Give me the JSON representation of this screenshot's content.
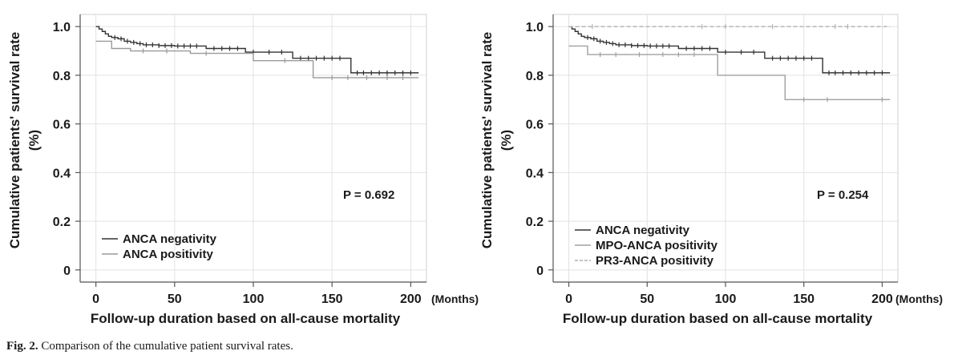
{
  "chart_data": [
    {
      "type": "line",
      "subtype": "kaplan-meier",
      "ylabel": "Cumulative patients' survival rate (%)",
      "xlabel": "Follow-up duration based on all-cause mortality",
      "xunit": "(Months)",
      "xlim": [
        -10,
        210
      ],
      "ylim": [
        -0.05,
        1.05
      ],
      "xticks": [
        0,
        50,
        100,
        150,
        200
      ],
      "yticks": [
        0,
        0.2,
        0.4,
        0.6,
        0.8,
        1.0
      ],
      "ytick_labels": [
        "0",
        "0.2",
        "0.4",
        "0.6",
        "0.8",
        "1.0"
      ],
      "grid": true,
      "pvalue": "P = 0.692",
      "legend_position": "bottom-left",
      "series": [
        {
          "name": "ANCA negativity",
          "color": "#333333",
          "style": "solid",
          "x": [
            0,
            2,
            4,
            6,
            8,
            10,
            14,
            18,
            22,
            26,
            30,
            40,
            50,
            70,
            95,
            125,
            162,
            205
          ],
          "y": [
            1.0,
            0.99,
            0.98,
            0.97,
            0.96,
            0.955,
            0.95,
            0.94,
            0.935,
            0.93,
            0.925,
            0.922,
            0.92,
            0.91,
            0.895,
            0.87,
            0.81,
            0.81
          ],
          "censored_x": [
            12,
            16,
            20,
            24,
            28,
            32,
            36,
            40,
            44,
            48,
            52,
            56,
            60,
            64,
            75,
            80,
            85,
            90,
            100,
            110,
            118,
            130,
            135,
            140,
            145,
            150,
            155,
            166,
            170,
            175,
            180,
            185,
            190,
            195,
            200
          ]
        },
        {
          "name": "ANCA positivity",
          "color": "#9a9a9a",
          "style": "solid",
          "x": [
            0,
            10,
            22,
            60,
            100,
            138,
            205
          ],
          "y": [
            0.94,
            0.91,
            0.9,
            0.89,
            0.86,
            0.79,
            0.79
          ],
          "censored_x": [
            30,
            45,
            70,
            120,
            150,
            160,
            172,
            185,
            195
          ]
        }
      ]
    },
    {
      "type": "line",
      "subtype": "kaplan-meier",
      "ylabel": "Cumulative patients' survival rate (%)",
      "xlabel": "Follow-up duration based on all-cause mortality",
      "xunit": "(Months)",
      "xlim": [
        -10,
        210
      ],
      "ylim": [
        -0.05,
        1.05
      ],
      "xticks": [
        0,
        50,
        100,
        150,
        200
      ],
      "yticks": [
        0,
        0.2,
        0.4,
        0.6,
        0.8,
        1.0
      ],
      "ytick_labels": [
        "0",
        "0.2",
        "0.4",
        "0.6",
        "0.8",
        "1.0"
      ],
      "grid": true,
      "pvalue": "P = 0.254",
      "legend_position": "bottom-left",
      "series": [
        {
          "name": "ANCA negativity",
          "color": "#333333",
          "style": "solid",
          "x": [
            0,
            2,
            4,
            6,
            8,
            10,
            14,
            18,
            22,
            26,
            30,
            40,
            50,
            70,
            95,
            125,
            162,
            205
          ],
          "y": [
            1.0,
            0.99,
            0.98,
            0.97,
            0.96,
            0.955,
            0.95,
            0.94,
            0.935,
            0.93,
            0.925,
            0.922,
            0.92,
            0.91,
            0.895,
            0.87,
            0.81,
            0.81
          ],
          "censored_x": [
            12,
            16,
            20,
            24,
            28,
            32,
            36,
            40,
            44,
            48,
            52,
            56,
            60,
            64,
            75,
            80,
            85,
            90,
            100,
            110,
            118,
            130,
            135,
            140,
            145,
            150,
            155,
            166,
            170,
            175,
            180,
            185,
            190,
            195,
            200
          ]
        },
        {
          "name": "MPO-ANCA positivity",
          "color": "#a0a0a0",
          "style": "solid",
          "x": [
            0,
            8,
            12,
            95,
            138,
            205
          ],
          "y": [
            0.92,
            0.92,
            0.885,
            0.8,
            0.7,
            0.7
          ],
          "censored_x": [
            20,
            30,
            45,
            60,
            70,
            80,
            150,
            165,
            200
          ]
        },
        {
          "name": "PR3-ANCA positivity",
          "color": "#b0b0b0",
          "style": "dashed",
          "x": [
            0,
            205
          ],
          "y": [
            1.0,
            1.0
          ],
          "censored_x": [
            15,
            85,
            100,
            130,
            170,
            178
          ]
        }
      ]
    }
  ],
  "caption": {
    "label": "Fig. 2.",
    "text": "Comparison of the cumulative patient survival rates."
  }
}
